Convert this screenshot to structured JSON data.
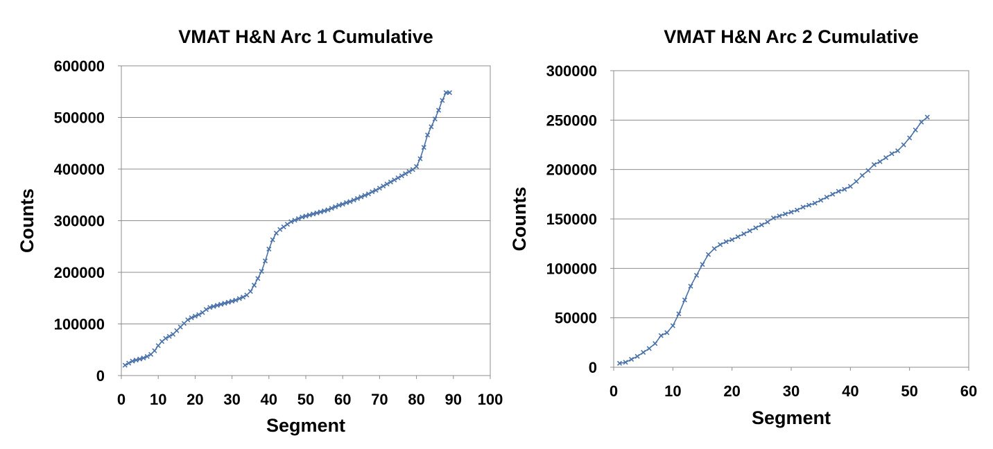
{
  "chart_data": [
    {
      "type": "line",
      "title": "VMAT H&N Arc 1 Cumulative",
      "xlabel": "Segment",
      "ylabel": "Counts",
      "xlim": [
        0,
        100
      ],
      "ylim": [
        0,
        600000
      ],
      "xticks": [
        0,
        10,
        20,
        30,
        40,
        50,
        60,
        70,
        80,
        90,
        100
      ],
      "yticks": [
        0,
        100000,
        200000,
        300000,
        400000,
        500000,
        600000
      ],
      "grid": "horizontal",
      "legend": "none",
      "color": "#4a72a8",
      "series": [
        {
          "x": [
            1,
            2,
            3,
            4,
            5,
            6,
            7,
            8,
            9,
            10,
            11,
            12,
            13,
            14,
            15,
            16,
            17,
            18,
            19,
            20,
            21,
            22,
            23,
            24,
            25,
            26,
            27,
            28,
            29,
            30,
            31,
            32,
            33,
            34,
            35,
            36,
            37,
            38,
            39,
            40,
            41,
            42,
            43,
            44,
            45,
            46,
            47,
            48,
            49,
            50,
            51,
            52,
            53,
            54,
            55,
            56,
            57,
            58,
            59,
            60,
            61,
            62,
            63,
            64,
            65,
            66,
            67,
            68,
            69,
            70,
            71,
            72,
            73,
            74,
            75,
            76,
            77,
            78,
            79,
            80,
            81,
            82,
            83,
            84,
            85,
            86,
            87,
            88,
            89
          ],
          "y": [
            20000,
            24000,
            28000,
            30000,
            32000,
            34000,
            37000,
            41000,
            48000,
            58000,
            66000,
            72000,
            76000,
            80000,
            87000,
            94000,
            101000,
            108000,
            112000,
            115000,
            118000,
            122000,
            128000,
            132000,
            134000,
            136000,
            138000,
            140000,
            142000,
            144000,
            146000,
            149000,
            152000,
            156000,
            163000,
            175000,
            188000,
            202000,
            222000,
            245000,
            263000,
            276000,
            283000,
            288000,
            293000,
            298000,
            301000,
            304000,
            307000,
            309000,
            311000,
            313000,
            315000,
            317000,
            319000,
            321000,
            324000,
            327000,
            330000,
            332000,
            335000,
            337000,
            340000,
            343000,
            346000,
            349000,
            352000,
            356000,
            359000,
            363000,
            367000,
            371000,
            375000,
            379000,
            383000,
            387000,
            391000,
            395000,
            399000,
            405000,
            420000,
            442000,
            466000,
            482000,
            497000,
            514000,
            533000,
            548000,
            548000
          ]
        }
      ]
    },
    {
      "type": "line",
      "title": "VMAT H&N Arc 2 Cumulative",
      "xlabel": "Segment",
      "ylabel": "Counts",
      "xlim": [
        0,
        60
      ],
      "ylim": [
        0,
        300000
      ],
      "xticks": [
        0,
        10,
        20,
        30,
        40,
        50,
        60
      ],
      "yticks": [
        0,
        50000,
        100000,
        150000,
        200000,
        250000,
        300000
      ],
      "grid": "horizontal",
      "legend": "none",
      "color": "#4a72a8",
      "series": [
        {
          "x": [
            1,
            2,
            3,
            4,
            5,
            6,
            7,
            8,
            9,
            10,
            11,
            12,
            13,
            14,
            15,
            16,
            17,
            18,
            19,
            20,
            21,
            22,
            23,
            24,
            25,
            26,
            27,
            28,
            29,
            30,
            31,
            32,
            33,
            34,
            35,
            36,
            37,
            38,
            39,
            40,
            41,
            42,
            43,
            44,
            45,
            46,
            47,
            48,
            49,
            50,
            51,
            52,
            53
          ],
          "y": [
            4000,
            5000,
            8000,
            11000,
            15000,
            19000,
            24000,
            32000,
            35000,
            42000,
            54000,
            68000,
            82000,
            93000,
            104000,
            114000,
            120000,
            124000,
            127000,
            129000,
            132000,
            135000,
            138000,
            141000,
            144000,
            147000,
            151000,
            153000,
            155000,
            157000,
            159000,
            162000,
            164000,
            166000,
            169000,
            172000,
            175000,
            178000,
            180000,
            183000,
            188000,
            194000,
            199000,
            205000,
            208000,
            212000,
            216000,
            219000,
            225000,
            232000,
            240000,
            248000,
            253000
          ]
        }
      ]
    }
  ]
}
